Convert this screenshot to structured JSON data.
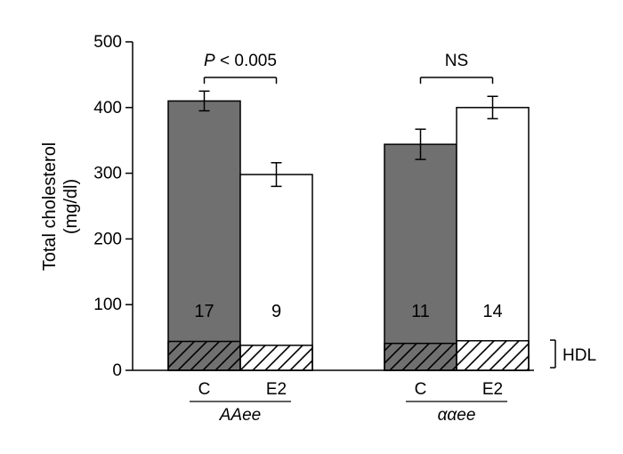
{
  "chart_data": {
    "type": "bar",
    "ylabel": [
      "Total cholesterol",
      "(mg/dl)"
    ],
    "ylim": [
      0,
      500
    ],
    "yticks": [
      0,
      100,
      200,
      300,
      400,
      500
    ],
    "grid": false,
    "groups": [
      {
        "label": "AAee",
        "significance": {
          "prefix": "P",
          "text": " < 0.005"
        },
        "bars": [
          {
            "condition": "C",
            "value": 410,
            "error": 15,
            "hdl": 44,
            "n": "17",
            "color": "#707070"
          },
          {
            "condition": "E2",
            "value": 298,
            "error": 18,
            "hdl": 38,
            "n": "9",
            "color": "#ffffff"
          }
        ]
      },
      {
        "label": "ααee",
        "significance": {
          "prefix": "",
          "text": "NS"
        },
        "bars": [
          {
            "condition": "C",
            "value": 344,
            "error": 23,
            "hdl": 41,
            "n": "11",
            "color": "#707070"
          },
          {
            "condition": "E2",
            "value": 400,
            "error": 17,
            "hdl": 45,
            "n": "14",
            "color": "#ffffff"
          }
        ]
      }
    ],
    "annotation": "HDL"
  }
}
